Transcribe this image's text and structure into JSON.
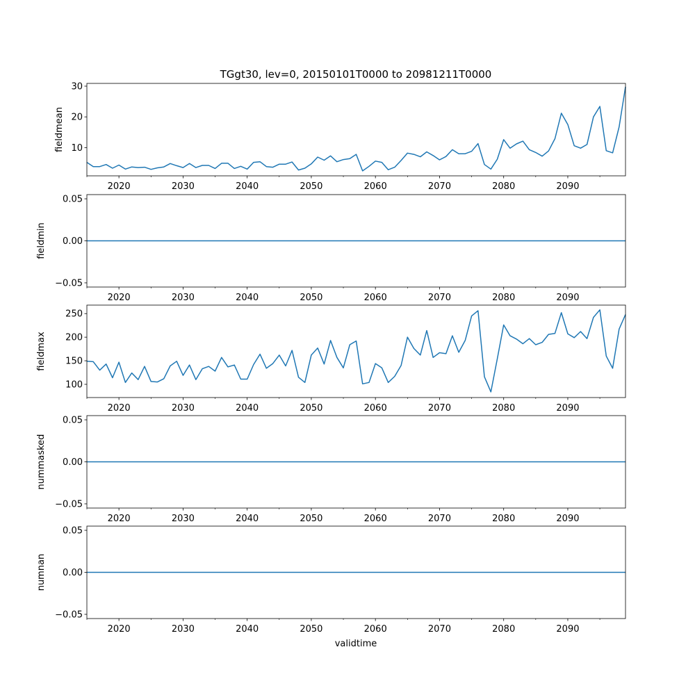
{
  "title": "TGgt30, lev=0, 20150101T0000 to 20981211T0000",
  "xlabel": "validtime",
  "line_color": "#1f77b4",
  "x_ticks": [
    "2020",
    "2030",
    "2040",
    "2050",
    "2060",
    "2070",
    "2080",
    "2090"
  ],
  "chart_data": [
    {
      "type": "line",
      "ylabel": "fieldmean",
      "x_start": 2015,
      "x_step": 1,
      "xlim": [
        2015,
        2099
      ],
      "ylim": [
        0.8,
        30.9
      ],
      "yticks": [
        10,
        20,
        30
      ],
      "ytick_labels": [
        "10",
        "20",
        "30"
      ],
      "values": [
        5.2,
        3.8,
        3.8,
        4.5,
        3.3,
        4.3,
        3.0,
        3.7,
        3.5,
        3.6,
        2.9,
        3.4,
        3.7,
        4.8,
        4.1,
        3.5,
        4.8,
        3.5,
        4.2,
        4.2,
        3.2,
        4.9,
        4.9,
        3.2,
        3.9,
        3.0,
        5.2,
        5.4,
        3.8,
        3.6,
        4.6,
        4.6,
        5.3,
        2.7,
        3.3,
        4.7,
        6.9,
        5.9,
        7.3,
        5.4,
        6.1,
        6.4,
        7.8,
        2.4,
        3.9,
        5.6,
        5.2,
        2.8,
        3.6,
        5.8,
        8.2,
        7.8,
        7.0,
        8.6,
        7.4,
        6.0,
        7.1,
        9.3,
        8.0,
        8.0,
        8.8,
        11.3,
        4.5,
        3.0,
        6.2,
        12.6,
        9.8,
        11.2,
        12.1,
        9.3,
        8.4,
        7.2,
        8.9,
        12.9,
        21.2,
        17.5,
        10.6,
        9.8,
        11.0,
        20.0,
        23.4,
        9.0,
        8.3,
        16.7,
        29.8
      ]
    },
    {
      "type": "line",
      "ylabel": "fieldmin",
      "x_start": 2015,
      "x_step": 1,
      "xlim": [
        2015,
        2099
      ],
      "ylim": [
        -0.055,
        0.055
      ],
      "yticks": [
        -0.05,
        0,
        0.05
      ],
      "ytick_labels": [
        "−0.05",
        "0.00",
        "0.05"
      ],
      "values": [
        0,
        0
      ]
    },
    {
      "type": "line",
      "ylabel": "fieldmax",
      "x_start": 2015,
      "x_step": 1,
      "xlim": [
        2015,
        2099
      ],
      "ylim": [
        72,
        268
      ],
      "yticks": [
        100,
        150,
        200,
        250
      ],
      "ytick_labels": [
        "100",
        "150",
        "200",
        "250"
      ],
      "values": [
        149,
        148,
        130,
        143,
        114,
        147,
        104,
        124,
        110,
        138,
        106,
        105,
        112,
        139,
        149,
        119,
        141,
        110,
        133,
        138,
        128,
        157,
        137,
        141,
        111,
        111,
        142,
        164,
        134,
        144,
        162,
        139,
        172,
        115,
        104,
        162,
        177,
        143,
        193,
        157,
        135,
        184,
        192,
        101,
        104,
        144,
        135,
        104,
        117,
        140,
        200,
        176,
        162,
        214,
        157,
        167,
        165,
        203,
        168,
        193,
        245,
        256,
        116,
        84,
        154,
        226,
        203,
        196,
        186,
        197,
        184,
        189,
        206,
        208,
        252,
        207,
        199,
        212,
        197,
        242,
        258,
        160,
        134,
        217,
        248
      ]
    },
    {
      "type": "line",
      "ylabel": "nummasked",
      "x_start": 2015,
      "x_step": 1,
      "xlim": [
        2015,
        2099
      ],
      "ylim": [
        -0.055,
        0.055
      ],
      "yticks": [
        -0.05,
        0,
        0.05
      ],
      "ytick_labels": [
        "−0.05",
        "0.00",
        "0.05"
      ],
      "values": [
        0,
        0
      ]
    },
    {
      "type": "line",
      "ylabel": "numnan",
      "x_start": 2015,
      "x_step": 1,
      "xlim": [
        2015,
        2099
      ],
      "ylim": [
        -0.055,
        0.055
      ],
      "yticks": [
        -0.05,
        0,
        0.05
      ],
      "ytick_labels": [
        "−0.05",
        "0.00",
        "0.05"
      ],
      "values": [
        0,
        0
      ]
    }
  ]
}
